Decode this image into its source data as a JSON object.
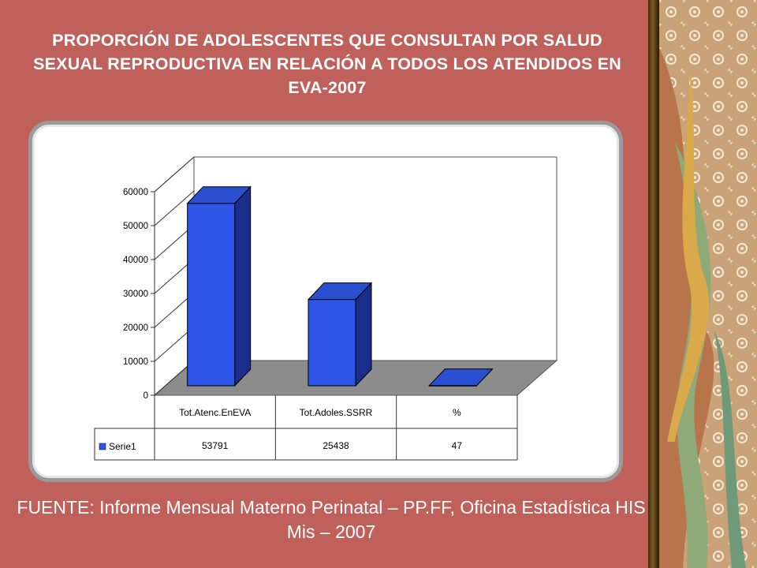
{
  "title": "PROPORCIÓN DE ADOLESCENTES QUE CONSULTAN POR SALUD SEXUAL REPRODUCTIVA EN RELACIÓN A TODOS LOS ATENDIDOS EN EVA-2007",
  "source": "FUENTE: Informe Mensual Materno Perinatal – PP.FF, Oficina Estadística HIS Mis – 2007",
  "colors": {
    "background": "#c0605a",
    "bar": "#2e55e8",
    "bar_top": "#2a4fd0",
    "bar_side": "#1a2e8a",
    "floor": "#8c8c8c"
  },
  "chart_data": {
    "type": "bar",
    "categories": [
      "Tot.Atenc.EnEVA",
      "Tot.Adoles.SSRR",
      "%"
    ],
    "series": [
      {
        "name": "Serie1",
        "values": [
          53791,
          25438,
          47
        ]
      }
    ],
    "ylim": [
      0,
      60000
    ],
    "yticks": [
      0,
      10000,
      20000,
      30000,
      40000,
      50000,
      60000
    ],
    "legend": "data-table",
    "grid": false,
    "title": "",
    "xlabel": "",
    "ylabel": ""
  }
}
